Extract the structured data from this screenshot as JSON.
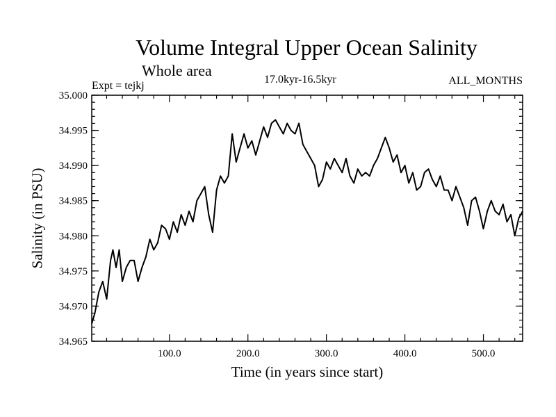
{
  "chart_data": {
    "type": "line",
    "title": "Volume Integral Upper Ocean Salinity",
    "subtitle": "Whole area",
    "experiment": "Expt = tejkj",
    "period": "17.0kyr-16.5kyr",
    "months": "ALL_MONTHS",
    "xlabel": "Time (in years since start)",
    "ylabel": "Salinity (in PSU)",
    "xlim": [
      1,
      550
    ],
    "ylim": [
      34.965,
      35.0
    ],
    "x_ticks": [
      100,
      200,
      300,
      400,
      500
    ],
    "x_tick_labels": [
      "100.0",
      "200.0",
      "300.0",
      "400.0",
      "500.0"
    ],
    "y_ticks": [
      34.965,
      34.97,
      34.975,
      34.98,
      34.985,
      34.99,
      34.995,
      35.0
    ],
    "y_tick_labels": [
      "34.965",
      "34.970",
      "34.975",
      "34.980",
      "34.985",
      "34.990",
      "34.995",
      "35.000"
    ],
    "series": [
      {
        "name": "Salinity",
        "color": "#000000",
        "x": [
          1,
          5,
          10,
          15,
          20,
          25,
          28,
          32,
          36,
          40,
          45,
          50,
          55,
          60,
          65,
          70,
          75,
          80,
          85,
          90,
          95,
          100,
          105,
          110,
          115,
          120,
          125,
          130,
          135,
          140,
          145,
          150,
          155,
          160,
          165,
          170,
          175,
          180,
          185,
          190,
          195,
          200,
          205,
          210,
          215,
          220,
          225,
          230,
          235,
          240,
          245,
          250,
          255,
          260,
          265,
          270,
          275,
          280,
          285,
          290,
          295,
          300,
          305,
          310,
          315,
          320,
          325,
          330,
          335,
          340,
          345,
          350,
          355,
          360,
          365,
          370,
          375,
          380,
          385,
          390,
          395,
          400,
          405,
          410,
          415,
          420,
          425,
          430,
          435,
          440,
          445,
          450,
          455,
          460,
          465,
          470,
          475,
          480,
          485,
          490,
          495,
          500,
          505,
          510,
          515,
          520,
          525,
          530,
          535,
          540,
          545,
          550
        ],
        "values": [
          34.9675,
          34.969,
          34.972,
          34.9735,
          34.971,
          34.9765,
          34.978,
          34.9755,
          34.978,
          34.9735,
          34.9755,
          34.9765,
          34.9765,
          34.9735,
          34.9755,
          34.977,
          34.9795,
          34.978,
          34.979,
          34.9815,
          34.981,
          34.9795,
          34.982,
          34.9805,
          34.983,
          34.9815,
          34.9835,
          34.982,
          34.985,
          34.986,
          34.987,
          34.983,
          34.9805,
          34.9865,
          34.9885,
          34.9875,
          34.9885,
          34.9945,
          34.9905,
          34.9925,
          34.9945,
          34.9925,
          34.9935,
          34.9915,
          34.9935,
          34.9955,
          34.994,
          34.996,
          34.9965,
          34.9955,
          34.9945,
          34.996,
          34.995,
          34.9945,
          34.996,
          34.993,
          34.992,
          34.991,
          34.99,
          34.987,
          34.988,
          34.9905,
          34.9895,
          34.991,
          34.99,
          34.989,
          34.991,
          34.9885,
          34.9875,
          34.9895,
          34.9885,
          34.989,
          34.9885,
          34.99,
          34.991,
          34.9925,
          34.994,
          34.9925,
          34.9905,
          34.9915,
          34.989,
          34.99,
          34.9875,
          34.989,
          34.9865,
          34.987,
          34.989,
          34.9895,
          34.988,
          34.987,
          34.9885,
          34.9865,
          34.9865,
          34.985,
          34.987,
          34.9855,
          34.984,
          34.9815,
          34.985,
          34.9855,
          34.9835,
          34.981,
          34.9835,
          34.985,
          34.9835,
          34.983,
          34.9845,
          34.982,
          34.983,
          34.98,
          34.9825,
          34.9835
        ]
      }
    ]
  }
}
